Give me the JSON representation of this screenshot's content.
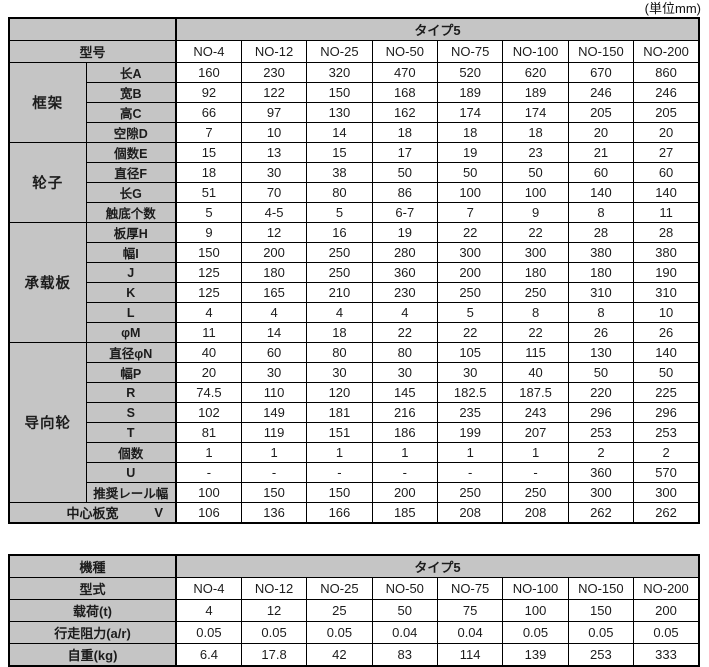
{
  "unit_label": "(単位mm)",
  "colors": {
    "header_bg": "#c5c5c5",
    "border": "#000000",
    "cell_bg": "#ffffff"
  },
  "table1": {
    "type_header": "タイプ5",
    "model_label": "型号",
    "models": [
      "NO-4",
      "NO-12",
      "NO-25",
      "NO-50",
      "NO-75",
      "NO-100",
      "NO-150",
      "NO-200"
    ],
    "groups": [
      {
        "label": "框架",
        "rows": [
          {
            "label": "长A",
            "values": [
              160,
              230,
              320,
              470,
              520,
              620,
              670,
              860
            ]
          },
          {
            "label": "宽B",
            "values": [
              92,
              122,
              150,
              168,
              189,
              189,
              246,
              246
            ]
          },
          {
            "label": "高C",
            "values": [
              66,
              97,
              130,
              162,
              174,
              174,
              205,
              205
            ]
          },
          {
            "label": "空隙D",
            "values": [
              7,
              10,
              14,
              18,
              18,
              18,
              20,
              20
            ]
          }
        ]
      },
      {
        "label": "轮子",
        "rows": [
          {
            "label": "個数E",
            "values": [
              15,
              13,
              15,
              17,
              19,
              23,
              21,
              27
            ]
          },
          {
            "label": "直径F",
            "values": [
              18,
              30,
              38,
              50,
              50,
              50,
              60,
              60
            ]
          },
          {
            "label": "长G",
            "values": [
              51,
              70,
              80,
              86,
              100,
              100,
              140,
              140
            ]
          },
          {
            "label": "触底个数",
            "values": [
              "5",
              "4-5",
              "5",
              "6-7",
              "7",
              "9",
              "8",
              "11"
            ]
          }
        ]
      },
      {
        "label": "承载板",
        "rows": [
          {
            "label": "板厚H",
            "values": [
              9,
              12,
              16,
              19,
              22,
              22,
              28,
              28
            ]
          },
          {
            "label": "幅I",
            "values": [
              150,
              200,
              250,
              280,
              300,
              300,
              380,
              380
            ]
          },
          {
            "label": "J",
            "values": [
              125,
              180,
              250,
              360,
              200,
              180,
              180,
              190
            ]
          },
          {
            "label": "K",
            "values": [
              125,
              165,
              210,
              230,
              250,
              250,
              310,
              310
            ]
          },
          {
            "label": "L",
            "values": [
              4,
              4,
              4,
              4,
              5,
              8,
              8,
              10
            ]
          },
          {
            "label": "φM",
            "values": [
              11,
              14,
              18,
              22,
              22,
              22,
              26,
              26
            ]
          }
        ]
      },
      {
        "label": "导向轮",
        "rows": [
          {
            "label": "直径φN",
            "values": [
              40,
              60,
              80,
              80,
              105,
              115,
              130,
              140
            ]
          },
          {
            "label": "幅P",
            "values": [
              20,
              30,
              30,
              30,
              30,
              40,
              50,
              50
            ]
          },
          {
            "label": "R",
            "values": [
              74.5,
              110,
              120,
              145,
              182.5,
              187.5,
              220,
              225
            ]
          },
          {
            "label": "S",
            "values": [
              102,
              149,
              181,
              216,
              235,
              243,
              296,
              296
            ]
          },
          {
            "label": "T",
            "values": [
              81,
              119,
              151,
              186,
              199,
              207,
              253,
              253
            ]
          },
          {
            "label": "個数",
            "values": [
              1,
              1,
              1,
              1,
              1,
              1,
              2,
              2
            ]
          },
          {
            "label": "U",
            "values": [
              "-",
              "-",
              "-",
              "-",
              "-",
              "-",
              "360",
              "570"
            ]
          },
          {
            "label": "推奨レール幅",
            "values": [
              100,
              150,
              150,
              200,
              250,
              250,
              300,
              300
            ]
          }
        ]
      }
    ],
    "footer_row": {
      "label": "中心板宽",
      "sublabel": "V",
      "values": [
        106,
        136,
        166,
        185,
        208,
        208,
        262,
        262
      ]
    }
  },
  "table2": {
    "machine_label": "機種",
    "type_header": "タイプ5",
    "model_label": "型式",
    "models": [
      "NO-4",
      "NO-12",
      "NO-25",
      "NO-50",
      "NO-75",
      "NO-100",
      "NO-150",
      "NO-200"
    ],
    "rows": [
      {
        "label": "载荷(t)",
        "values": [
          4,
          12,
          25,
          50,
          75,
          100,
          150,
          200
        ]
      },
      {
        "label": "行走阻力(a/r)",
        "values": [
          "0.05",
          "0.05",
          "0.05",
          "0.04",
          "0.04",
          "0.05",
          "0.05",
          "0.05"
        ]
      },
      {
        "label": "自重(kg)",
        "values": [
          6.4,
          17.8,
          42,
          83,
          114,
          139,
          253,
          333
        ]
      }
    ]
  }
}
